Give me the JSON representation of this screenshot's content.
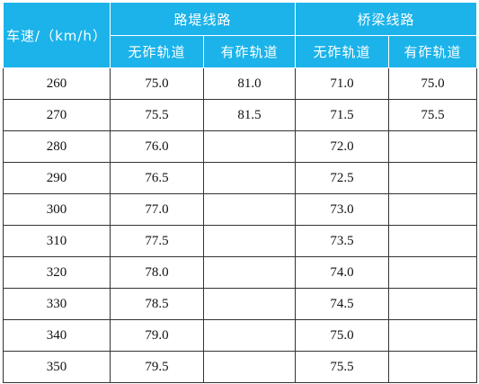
{
  "header": {
    "speed": "车速/（km/h）",
    "groups": [
      {
        "title": "路堤线路",
        "columns": [
          "无砟轨道",
          "有砟轨道"
        ]
      },
      {
        "title": "桥梁线路",
        "columns": [
          "无砟轨道",
          "有砟轨道"
        ]
      }
    ]
  },
  "table": {
    "rows": [
      [
        "260",
        "75.0",
        "81.0",
        "71.0",
        "75.0"
      ],
      [
        "270",
        "75.5",
        "81.5",
        "71.5",
        "75.5"
      ],
      [
        "280",
        "76.0",
        null,
        "72.0",
        null
      ],
      [
        "290",
        "76.5",
        null,
        "72.5",
        null
      ],
      [
        "300",
        "77.0",
        null,
        "73.0",
        null
      ],
      [
        "310",
        "77.5",
        null,
        "73.5",
        null
      ],
      [
        "320",
        "78.0",
        null,
        "74.0",
        null
      ],
      [
        "330",
        "78.5",
        null,
        "74.5",
        null
      ],
      [
        "340",
        "79.0",
        null,
        "75.0",
        null
      ],
      [
        "350",
        "79.5",
        null,
        "75.5",
        null
      ]
    ]
  }
}
